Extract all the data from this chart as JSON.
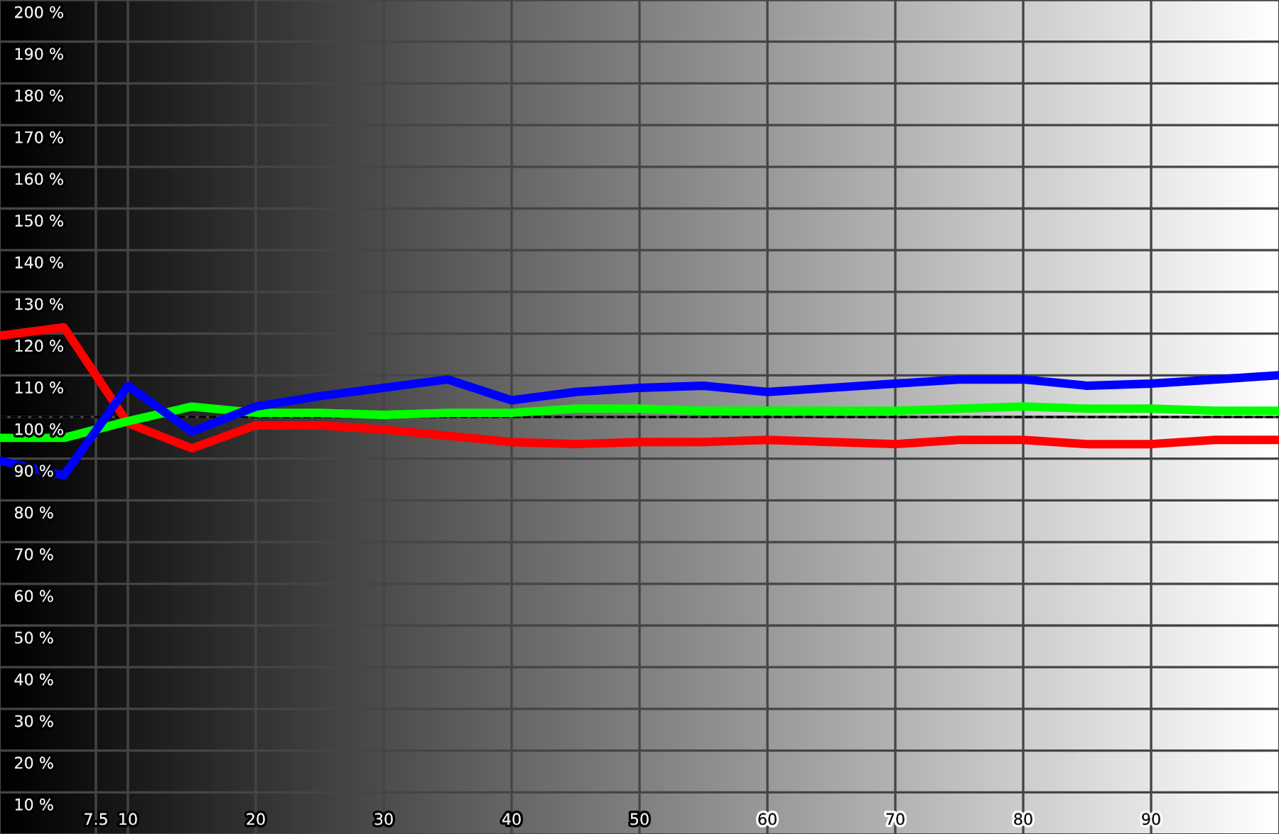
{
  "chart_data": {
    "type": "line",
    "x": [
      0,
      5,
      10,
      15,
      20,
      25,
      30,
      35,
      40,
      45,
      50,
      55,
      60,
      65,
      70,
      75,
      80,
      85,
      90,
      95,
      100
    ],
    "series": [
      {
        "color": "#ff0000",
        "values": [
          119.5,
          121.5,
          98.5,
          92.5,
          98,
          98,
          97,
          95.5,
          94,
          93.5,
          94,
          94,
          94.5,
          94,
          93.5,
          94.5,
          94.5,
          93.5,
          93.5,
          94.5,
          94.5
        ]
      },
      {
        "color": "#00ff00",
        "values": [
          95,
          95,
          99,
          102.5,
          101,
          101,
          100.5,
          101,
          101,
          102,
          102,
          101.5,
          101.5,
          101.5,
          101.5,
          102,
          102.5,
          102,
          102,
          101.5,
          101.5
        ]
      },
      {
        "color": "#0000ff",
        "values": [
          89.5,
          86,
          107.5,
          96.5,
          102.5,
          105,
          107,
          109,
          104,
          106,
          107,
          107.5,
          106,
          107,
          108,
          109,
          109,
          107.5,
          108,
          109,
          110
        ]
      }
    ],
    "xlim": [
      0,
      100
    ],
    "ylim": [
      0,
      200
    ],
    "xticks": [
      7.5,
      10,
      20,
      30,
      40,
      50,
      60,
      70,
      80,
      90
    ],
    "yticks": [
      {
        "value": 10,
        "label": "10 %"
      },
      {
        "value": 20,
        "label": "20 %"
      },
      {
        "value": 30,
        "label": "30 %"
      },
      {
        "value": 40,
        "label": "40 %"
      },
      {
        "value": 50,
        "label": "50 %"
      },
      {
        "value": 60,
        "label": "60 %"
      },
      {
        "value": 70,
        "label": "70 %"
      },
      {
        "value": 80,
        "label": "80 %"
      },
      {
        "value": 90,
        "label": "90 %"
      },
      {
        "value": 100,
        "label": "100 %"
      },
      {
        "value": 110,
        "label": "110 %"
      },
      {
        "value": 120,
        "label": "120 %"
      },
      {
        "value": 130,
        "label": "130 %"
      },
      {
        "value": 140,
        "label": "140 %"
      },
      {
        "value": 150,
        "label": "150 %"
      },
      {
        "value": 160,
        "label": "160 %"
      },
      {
        "value": 170,
        "label": "170 %"
      },
      {
        "value": 180,
        "label": "180 %"
      },
      {
        "value": 190,
        "label": "190 %"
      },
      {
        "value": 200,
        "label": "200 %"
      }
    ],
    "grid": true,
    "line_style": "solid",
    "ref_lines": [
      {
        "axis": "y",
        "value": 100,
        "line_style": "dashed",
        "color": "#000000"
      }
    ]
  }
}
